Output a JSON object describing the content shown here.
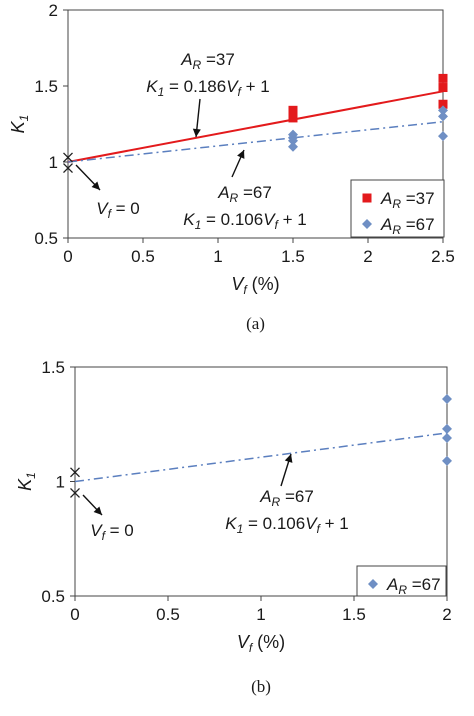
{
  "chart_data": [
    {
      "type": "scatter",
      "caption": "(a)",
      "xlabel": "V_f (%)",
      "ylabel": "K_1",
      "xlim": [
        0,
        2.5
      ],
      "ylim": [
        0.5,
        2
      ],
      "xticks": [
        "0",
        "0.5",
        "1",
        "1.5",
        "2",
        "2.5"
      ],
      "yticks": [
        "0.5",
        "1",
        "1.5",
        "2"
      ],
      "series": [
        {
          "name": "A_R =37",
          "marker": "square",
          "color": "#e31a1c",
          "x": [
            1.5,
            1.5,
            1.5,
            2.5,
            2.5,
            2.5
          ],
          "y": [
            1.34,
            1.32,
            1.29,
            1.55,
            1.49,
            1.38
          ]
        },
        {
          "name": "A_R =67",
          "marker": "diamond",
          "color": "#6f8fc4",
          "x": [
            1.5,
            1.5,
            1.5,
            1.5,
            2.5,
            2.5,
            2.5
          ],
          "y": [
            1.18,
            1.16,
            1.14,
            1.1,
            1.34,
            1.3,
            1.17
          ]
        }
      ],
      "zero_points": {
        "x": [
          0,
          0
        ],
        "y": [
          1.03,
          0.96
        ]
      },
      "fits": [
        {
          "series": "A_R =37",
          "slope": 0.186,
          "intercept": 1,
          "style": "solid",
          "color": "#e31a1c"
        },
        {
          "series": "A_R =67",
          "slope": 0.106,
          "intercept": 1,
          "style": "dashdot",
          "color": "#5b7fbf"
        }
      ],
      "annotations": [
        {
          "label": "A_R =37",
          "equation": "K_1 = 0.186V_f + 1"
        },
        {
          "label": "A_R =67",
          "equation": "K_1 = 0.106V_f + 1"
        },
        {
          "label": "V_f = 0"
        }
      ],
      "legend": "bottom-right",
      "grid": false
    },
    {
      "type": "scatter",
      "caption": "(b)",
      "xlabel": "V_f (%)",
      "ylabel": "K_1",
      "xlim": [
        0,
        2
      ],
      "ylim": [
        0.5,
        1.5
      ],
      "xticks": [
        "0",
        "0.5",
        "1",
        "1.5",
        "2"
      ],
      "yticks": [
        "0.5",
        "1",
        "1.5"
      ],
      "series": [
        {
          "name": "A_R =67",
          "marker": "diamond",
          "color": "#6f8fc4",
          "x": [
            2,
            2,
            2,
            2
          ],
          "y": [
            1.36,
            1.23,
            1.19,
            1.09
          ]
        }
      ],
      "zero_points": {
        "x": [
          0,
          0
        ],
        "y": [
          1.04,
          0.95
        ]
      },
      "fits": [
        {
          "series": "A_R =67",
          "slope": 0.106,
          "intercept": 1,
          "style": "dashdot",
          "color": "#5b7fbf"
        }
      ],
      "annotations": [
        {
          "label": "A_R =67",
          "equation": "K_1 = 0.106V_f + 1"
        },
        {
          "label": "V_f = 0"
        }
      ],
      "legend": "bottom-right",
      "grid": false
    }
  ]
}
